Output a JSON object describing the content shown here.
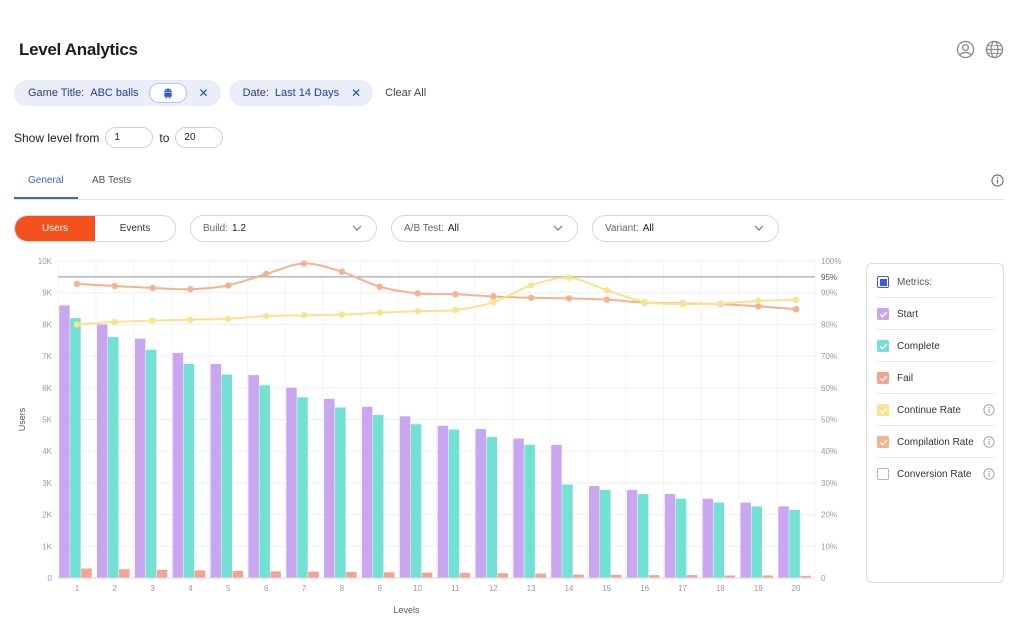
{
  "header": {
    "title": "Level Analytics",
    "icons": [
      "user-icon",
      "globe-icon"
    ]
  },
  "filters": {
    "game": {
      "label": "Game Title:",
      "value": "ABC balls",
      "platform_icon": "android-icon"
    },
    "date": {
      "label": "Date:",
      "value": "Last 14 Days"
    },
    "clear_all": "Clear All"
  },
  "level_range": {
    "label": "Show level from",
    "from": "1",
    "to_label": "to",
    "to": "20"
  },
  "tabs": [
    {
      "label": "General"
    },
    {
      "label": "AB Tests"
    }
  ],
  "controls": {
    "users_label": "Users",
    "events_label": "Events",
    "build": {
      "label": "Build:",
      "value": "1.2"
    },
    "ab_test": {
      "label": "A/B Test:",
      "value": "All"
    },
    "variant": {
      "label": "Variant:",
      "value": "All"
    }
  },
  "legend": {
    "header": "Metrics:",
    "items": [
      {
        "label": "Start",
        "color": "#c9a6f0",
        "checked": true,
        "info": false
      },
      {
        "label": "Complete",
        "color": "#72e0d2",
        "checked": true,
        "info": false
      },
      {
        "label": "Fail",
        "color": "#f4a293",
        "checked": true,
        "info": false
      },
      {
        "label": "Continue Rate",
        "color": "#fbe38c",
        "checked": true,
        "info": true
      },
      {
        "label": "Compilation Rate",
        "color": "#f6b28e",
        "checked": true,
        "info": true
      },
      {
        "label": "Conversion Rate",
        "color": "#ffffff",
        "checked": false,
        "info": true
      }
    ]
  },
  "chart_data": {
    "type": "bar",
    "xlabel": "Levels",
    "ylabel": "Users",
    "categories": [
      "1",
      "2",
      "3",
      "4",
      "5",
      "6",
      "7",
      "8",
      "9",
      "10",
      "11",
      "12",
      "13",
      "14",
      "15",
      "16",
      "17",
      "18",
      "19",
      "20"
    ],
    "ylim": [
      0,
      10000
    ],
    "y_ticks": [
      "0",
      "1K",
      "2K",
      "3K",
      "4K",
      "5K",
      "6K",
      "7K",
      "8K",
      "9K",
      "10K"
    ],
    "y2lim": [
      0,
      100
    ],
    "y2_ticks": [
      "0",
      "10%",
      "20%",
      "30%",
      "40%",
      "50%",
      "60%",
      "70%",
      "80%",
      "90%",
      "100%"
    ],
    "reference_line": {
      "value": 95,
      "label": "95%"
    },
    "colors": {
      "start": "#c9a6f0",
      "complete": "#72e0d2",
      "fail": "#f4a293",
      "continue": "#fbe38c",
      "compilation": "#f6b28e",
      "reference": "#a8a8a8"
    },
    "series": [
      {
        "name": "Start",
        "axis": "left",
        "values": [
          8600,
          8000,
          7550,
          7100,
          6750,
          6400,
          6000,
          5650,
          5400,
          5100,
          4800,
          4700,
          4400,
          4200,
          2900,
          2780,
          2650,
          2500,
          2380,
          2260
        ]
      },
      {
        "name": "Complete",
        "axis": "left",
        "values": [
          8200,
          7600,
          7200,
          6750,
          6420,
          6080,
          5700,
          5380,
          5140,
          4850,
          4680,
          4450,
          4200,
          2950,
          2780,
          2650,
          2500,
          2380,
          2260,
          2150
        ]
      },
      {
        "name": "Fail",
        "axis": "left",
        "values": [
          300,
          280,
          260,
          240,
          220,
          210,
          200,
          190,
          180,
          170,
          160,
          150,
          140,
          110,
          100,
          90,
          90,
          80,
          80,
          70
        ]
      },
      {
        "name": "Continue Rate",
        "axis": "right",
        "values": [
          80,
          80.8,
          81.2,
          81.5,
          81.8,
          82.6,
          82.9,
          83.1,
          83.7,
          84.2,
          84.5,
          87,
          92.3,
          94.7,
          90.8,
          87.1,
          86.4,
          86.6,
          87.4,
          87.8
        ]
      },
      {
        "name": "Compilation Rate",
        "axis": "right",
        "values": [
          92.8,
          92.1,
          91.5,
          91.1,
          92.3,
          95.9,
          99.2,
          96.6,
          91.9,
          89.8,
          89.5,
          88.8,
          88.4,
          88.2,
          87.8,
          86.9,
          86.6,
          86.4,
          85.7,
          84.8
        ]
      }
    ]
  }
}
